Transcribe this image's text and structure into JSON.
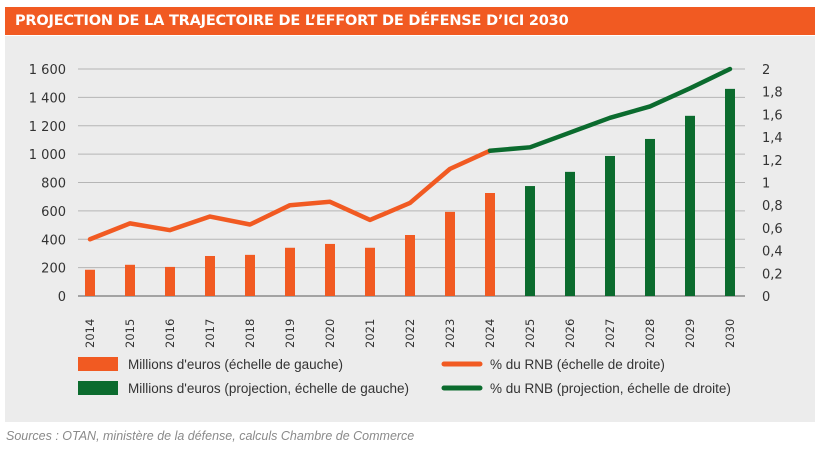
{
  "chart_data": {
    "type": "bar",
    "title": "PROJECTION DE LA TRAJECTOIRE DE L’EFFORT DE DÉFENSE D’ICI 2030",
    "categories": [
      "2014",
      "2015",
      "2016",
      "2017",
      "2018",
      "2019",
      "2020",
      "2021",
      "2022",
      "2023",
      "2024",
      "2025",
      "2026",
      "2027",
      "2028",
      "2029",
      "2030"
    ],
    "series": [
      {
        "name": "Millions d'euros (échelle de gauche)",
        "type": "bar",
        "axis": "left",
        "color": "#f15a22",
        "values": [
          185,
          220,
          205,
          282,
          290,
          340,
          367,
          340,
          430,
          593,
          726,
          null,
          null,
          null,
          null,
          null,
          null
        ]
      },
      {
        "name": "Millions d'euros (projection, échelle de gauche)",
        "type": "bar",
        "axis": "left",
        "color": "#0b6b2e",
        "values": [
          null,
          null,
          null,
          null,
          null,
          null,
          null,
          null,
          null,
          null,
          null,
          775,
          875,
          987,
          1107,
          1270,
          1460
        ]
      },
      {
        "name": "% du RNB (échelle de droite)",
        "type": "line",
        "axis": "right",
        "color": "#f15a22",
        "values": [
          0.5,
          0.64,
          0.58,
          0.7,
          0.63,
          0.8,
          0.83,
          0.67,
          0.82,
          1.12,
          1.28,
          null,
          null,
          null,
          null,
          null,
          null
        ]
      },
      {
        "name": "% du RNB (projection, échelle de droite)",
        "type": "line",
        "axis": "right",
        "color": "#0b6b2e",
        "values": [
          null,
          null,
          null,
          null,
          null,
          null,
          null,
          null,
          null,
          null,
          1.28,
          1.31,
          1.44,
          1.57,
          1.67,
          1.83,
          2.0
        ]
      }
    ],
    "left_axis": {
      "range": [
        0,
        1600
      ],
      "ticks": [
        "0",
        "200",
        "400",
        "600",
        "800",
        "1 000",
        "1 200",
        "1 400",
        "1 600"
      ],
      "tick_values": [
        0,
        200,
        400,
        600,
        800,
        1000,
        1200,
        1400,
        1600
      ]
    },
    "right_axis": {
      "range": [
        0,
        2
      ],
      "ticks": [
        "0",
        "0,2",
        "0,4",
        "0,6",
        "0,8",
        "1",
        "1,2",
        "1,4",
        "1,6",
        "1,8",
        "2"
      ],
      "tick_values": [
        0,
        0.2,
        0.4,
        0.6,
        0.8,
        1,
        1.2,
        1.4,
        1.6,
        1.8,
        2
      ]
    },
    "grid": true,
    "legend_placement": "bottom"
  },
  "source": "Sources : OTAN, ministère de la défense, calculs Chambre de Commerce"
}
